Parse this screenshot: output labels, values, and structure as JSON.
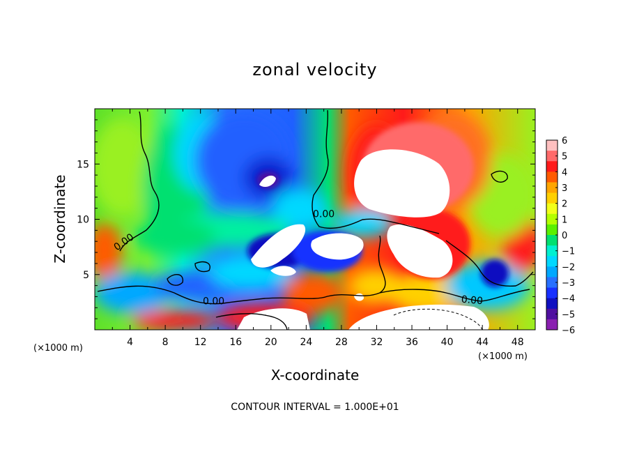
{
  "chart_data": {
    "type": "heatmap",
    "title": "zonal velocity",
    "xlabel": "X-coordinate",
    "ylabel": "Z-coordinate",
    "x_scale_note": "(×1000 m)",
    "y_scale_note": "(×1000 m)",
    "footnote": "CONTOUR INTERVAL = 1.000E+01",
    "xlim": [
      0,
      50
    ],
    "ylim": [
      0,
      20
    ],
    "x_ticks": [
      "4",
      "8",
      "12",
      "16",
      "20",
      "24",
      "28",
      "32",
      "36",
      "40",
      "44",
      "48"
    ],
    "y_ticks": [
      "5",
      "10",
      "15"
    ],
    "contour_labels": [
      "0.00",
      "0.00",
      "0.00",
      "0.00"
    ],
    "colorbar": {
      "range": [
        -6,
        6
      ],
      "ticks": [
        "6",
        "5",
        "4",
        "3",
        "2",
        "1",
        "0",
        "−1",
        "−2",
        "−3",
        "−4",
        "−5",
        "−6"
      ],
      "colors": [
        "#ffc0c0",
        "#ff6a6a",
        "#ff1a1a",
        "#ff5a00",
        "#ffa500",
        "#ffd000",
        "#f2ff1a",
        "#b4ff00",
        "#5af000",
        "#00e070",
        "#00f0d0",
        "#00d8ff",
        "#00a8ff",
        "#2870ff",
        "#1830ff",
        "#1010c0",
        "#5010a0",
        "#8a20b0"
      ],
      "outside_range_color": "#ffffff"
    }
  }
}
